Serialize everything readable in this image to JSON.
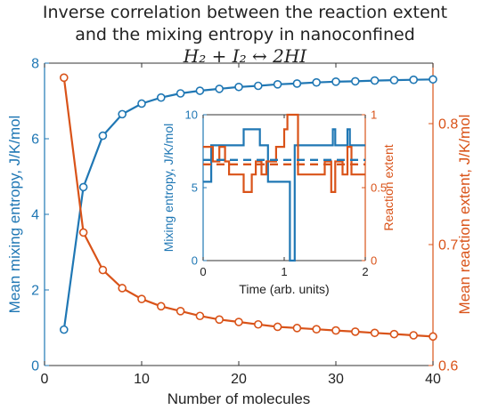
{
  "title_lines": [
    "Inverse correlation between the reaction extent",
    "and the mixing entropy in nanoconfined",
    "H₂ + I₂ ↔ 2HI"
  ],
  "colors": {
    "entropy": "#1f77b4",
    "reaction": "#d95319",
    "axis": "#333333"
  },
  "chart_data": [
    {
      "type": "line",
      "xlabel": "Number of molecules",
      "ylabel_left": "Mean mixing entropy, J/K/mol",
      "ylabel_right": "Mean reaction extent, J/K/mol",
      "xlim": [
        0,
        40
      ],
      "ylim_left": [
        0,
        8
      ],
      "ylim_right": [
        0.6,
        0.85
      ],
      "xticks": [
        0,
        10,
        20,
        30,
        40
      ],
      "yticks_left": [
        0,
        2,
        4,
        6,
        8
      ],
      "yticks_right": [
        0.6,
        0.7,
        0.8
      ],
      "grid": false,
      "x": [
        2,
        4,
        6,
        8,
        10,
        12,
        14,
        16,
        18,
        20,
        22,
        24,
        26,
        28,
        30,
        32,
        34,
        36,
        38,
        40
      ],
      "series": [
        {
          "axis": "left",
          "color": "#1f77b4",
          "values": [
            0.95,
            4.72,
            6.08,
            6.65,
            6.93,
            7.09,
            7.2,
            7.27,
            7.32,
            7.37,
            7.4,
            7.44,
            7.46,
            7.49,
            7.51,
            7.52,
            7.54,
            7.55,
            7.56,
            7.57
          ]
        },
        {
          "axis": "right",
          "color": "#d95319",
          "values": [
            0.838,
            0.71,
            0.679,
            0.664,
            0.655,
            0.649,
            0.645,
            0.641,
            0.638,
            0.636,
            0.634,
            0.632,
            0.631,
            0.63,
            0.629,
            0.628,
            0.627,
            0.626,
            0.625,
            0.624
          ]
        }
      ]
    },
    {
      "type": "line",
      "inset": true,
      "xlabel": "Time (arb. units)",
      "ylabel_left": "Mixing entropy, J/K/mol",
      "ylabel_right": "Reaction extent",
      "xlim": [
        0,
        2
      ],
      "ylim_left": [
        0,
        10
      ],
      "ylim_right": [
        0,
        1
      ],
      "xticks": [
        0,
        1,
        2
      ],
      "yticks_left": [
        0,
        5,
        10
      ],
      "yticks_right": [
        0,
        0.5,
        1
      ],
      "series": [
        {
          "axis": "left",
          "color": "#1f77b4",
          "step": true,
          "x": [
            0,
            0.1,
            0.5,
            0.7,
            0.8,
            1.07,
            1.13,
            1.6,
            1.63,
            1.78,
            1.81,
            2
          ],
          "values": [
            5.4,
            7.9,
            9.0,
            7.9,
            5.4,
            0.0,
            7.9,
            9.0,
            7.9,
            9.0,
            7.9,
            7.9
          ]
        },
        {
          "axis": "right",
          "color": "#d95319",
          "step": true,
          "x": [
            0,
            0.12,
            0.2,
            0.27,
            0.32,
            0.5,
            0.6,
            0.65,
            0.72,
            0.78,
            0.9,
            1.0,
            1.04,
            1.17,
            1.5,
            1.58,
            1.63,
            1.72,
            1.78,
            1.83,
            2
          ],
          "values": [
            0.78,
            0.68,
            0.78,
            0.68,
            0.59,
            0.47,
            0.59,
            0.68,
            0.59,
            0.68,
            0.78,
            0.9,
            1.0,
            0.59,
            0.68,
            0.47,
            0.68,
            0.59,
            0.78,
            0.59,
            0.59
          ]
        },
        {
          "axis": "left",
          "color": "#1f77b4",
          "dashed": true,
          "x": [
            0,
            2
          ],
          "values": [
            6.9,
            6.9
          ]
        },
        {
          "axis": "right",
          "color": "#d95319",
          "dashed": true,
          "x": [
            0,
            2
          ],
          "values": [
            0.66,
            0.66
          ]
        }
      ]
    }
  ]
}
